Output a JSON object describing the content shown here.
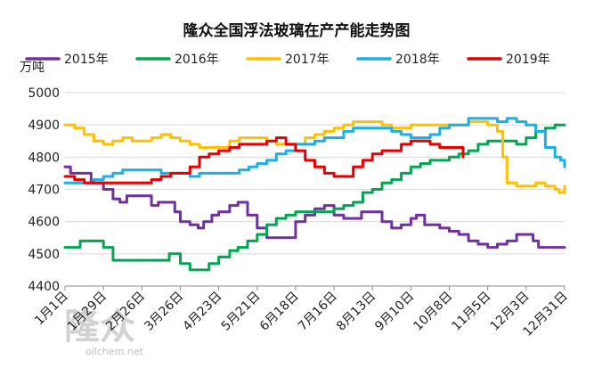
{
  "chart_data": {
    "type": "line",
    "title": "隆众全国浮法玻璃在产产能走势图",
    "ylabel": "万吨",
    "xlabel": "",
    "ylim": [
      4400,
      5000
    ],
    "yticks": [
      4400,
      4500,
      4600,
      4700,
      4800,
      4900,
      5000
    ],
    "xlim": [
      "1月1日",
      "12月31日"
    ],
    "xtick_labels": [
      "1月1日",
      "1月29日",
      "2月26日",
      "3月26日",
      "4月23日",
      "5月21日",
      "6月18日",
      "7月16日",
      "8月13日",
      "9月10日",
      "10月8日",
      "11月5日",
      "12月3日",
      "12月31日"
    ],
    "grid": "horizontal",
    "legend_position": "top",
    "series": [
      {
        "name": "2015年",
        "color": "#7030A0",
        "points": [
          [
            "1月1日",
            4770
          ],
          [
            "1月5日",
            4750
          ],
          [
            "1月12日",
            4750
          ],
          [
            "1月20日",
            4720
          ],
          [
            "1月29日",
            4700
          ],
          [
            "2月5日",
            4670
          ],
          [
            "2月10日",
            4660
          ],
          [
            "2月15日",
            4680
          ],
          [
            "2月26日",
            4680
          ],
          [
            "3月5日",
            4650
          ],
          [
            "3月10日",
            4660
          ],
          [
            "3月15日",
            4660
          ],
          [
            "3月22日",
            4630
          ],
          [
            "3月26日",
            4600
          ],
          [
            "4月2日",
            4590
          ],
          [
            "4月8日",
            4580
          ],
          [
            "4月12日",
            4600
          ],
          [
            "4月18日",
            4620
          ],
          [
            "4月23日",
            4630
          ],
          [
            "5月1日",
            4650
          ],
          [
            "5月7日",
            4660
          ],
          [
            "5月14日",
            4620
          ],
          [
            "5月21日",
            4580
          ],
          [
            "5月28日",
            4550
          ],
          [
            "6月4日",
            4550
          ],
          [
            "6月10日",
            4550
          ],
          [
            "6月18日",
            4600
          ],
          [
            "6月25日",
            4620
          ],
          [
            "7月2日",
            4640
          ],
          [
            "7月9日",
            4650
          ],
          [
            "7月16日",
            4620
          ],
          [
            "7月23日",
            4610
          ],
          [
            "7月30日",
            4610
          ],
          [
            "8月5日",
            4630
          ],
          [
            "8月13日",
            4630
          ],
          [
            "8月20日",
            4600
          ],
          [
            "8月27日",
            4580
          ],
          [
            "9月3日",
            4590
          ],
          [
            "9月10日",
            4610
          ],
          [
            "9月14日",
            4620
          ],
          [
            "9月20日",
            4590
          ],
          [
            "9月27日",
            4590
          ],
          [
            "10月1日",
            4580
          ],
          [
            "10月8日",
            4570
          ],
          [
            "10月15日",
            4560
          ],
          [
            "10月22日",
            4540
          ],
          [
            "10月29日",
            4530
          ],
          [
            "11月5日",
            4520
          ],
          [
            "11月12日",
            4530
          ],
          [
            "11月19日",
            4540
          ],
          [
            "11月26日",
            4560
          ],
          [
            "12月3日",
            4560
          ],
          [
            "12月8日",
            4540
          ],
          [
            "12月12日",
            4520
          ],
          [
            "12月20日",
            4520
          ],
          [
            "12月31日",
            4520
          ]
        ]
      },
      {
        "name": "2016年",
        "color": "#00A651",
        "points": [
          [
            "1月1日",
            4520
          ],
          [
            "1月8日",
            4520
          ],
          [
            "1月12日",
            4540
          ],
          [
            "1月20日",
            4540
          ],
          [
            "1月29日",
            4520
          ],
          [
            "2月5日",
            4480
          ],
          [
            "2月12日",
            4480
          ],
          [
            "2月20日",
            4480
          ],
          [
            "2月26日",
            4480
          ],
          [
            "3月5日",
            4480
          ],
          [
            "3月12日",
            4480
          ],
          [
            "3月18日",
            4500
          ],
          [
            "3月26日",
            4470
          ],
          [
            "4月2日",
            4450
          ],
          [
            "4月9日",
            4450
          ],
          [
            "4月16日",
            4470
          ],
          [
            "4月23日",
            4490
          ],
          [
            "5月1日",
            4510
          ],
          [
            "5月7日",
            4520
          ],
          [
            "5月14日",
            4540
          ],
          [
            "5月21日",
            4560
          ],
          [
            "5月28日",
            4590
          ],
          [
            "6月4日",
            4610
          ],
          [
            "6月11日",
            4620
          ],
          [
            "6月18日",
            4630
          ],
          [
            "6月25日",
            4630
          ],
          [
            "7月2日",
            4630
          ],
          [
            "7月9日",
            4630
          ],
          [
            "7月16日",
            4640
          ],
          [
            "7月23日",
            4650
          ],
          [
            "7月30日",
            4660
          ],
          [
            "8月6日",
            4690
          ],
          [
            "8月13日",
            4700
          ],
          [
            "8月20日",
            4720
          ],
          [
            "8月27日",
            4730
          ],
          [
            "9月3日",
            4750
          ],
          [
            "9月10日",
            4770
          ],
          [
            "9月17日",
            4780
          ],
          [
            "9月24日",
            4790
          ],
          [
            "10月1日",
            4790
          ],
          [
            "10月8日",
            4800
          ],
          [
            "10月15日",
            4810
          ],
          [
            "10月22日",
            4820
          ],
          [
            "10月29日",
            4840
          ],
          [
            "11月5日",
            4850
          ],
          [
            "11月12日",
            4850
          ],
          [
            "11月19日",
            4850
          ],
          [
            "11月26日",
            4840
          ],
          [
            "12月3日",
            4860
          ],
          [
            "12月10日",
            4880
          ],
          [
            "12月17日",
            4890
          ],
          [
            "12月24日",
            4900
          ],
          [
            "12月31日",
            4900
          ]
        ]
      },
      {
        "name": "2017年",
        "color": "#FFC000",
        "points": [
          [
            "1月1日",
            4900
          ],
          [
            "1月8日",
            4890
          ],
          [
            "1月15日",
            4870
          ],
          [
            "1月22日",
            4850
          ],
          [
            "1月29日",
            4840
          ],
          [
            "2月5日",
            4850
          ],
          [
            "2月12日",
            4860
          ],
          [
            "2月19日",
            4850
          ],
          [
            "2月26日",
            4850
          ],
          [
            "3月5日",
            4860
          ],
          [
            "3月12日",
            4870
          ],
          [
            "3月19日",
            4860
          ],
          [
            "3月26日",
            4850
          ],
          [
            "4月2日",
            4840
          ],
          [
            "4月9日",
            4830
          ],
          [
            "4月16日",
            4830
          ],
          [
            "4月23日",
            4830
          ],
          [
            "5月1日",
            4850
          ],
          [
            "5月8日",
            4860
          ],
          [
            "5月15日",
            4860
          ],
          [
            "5月21日",
            4860
          ],
          [
            "5月28日",
            4850
          ],
          [
            "6月4日",
            4840
          ],
          [
            "6月11日",
            4840
          ],
          [
            "6月18日",
            4840
          ],
          [
            "6月25日",
            4860
          ],
          [
            "7月2日",
            4870
          ],
          [
            "7月9日",
            4880
          ],
          [
            "7月16日",
            4890
          ],
          [
            "7月23日",
            4900
          ],
          [
            "7月30日",
            4910
          ],
          [
            "8月6日",
            4910
          ],
          [
            "8月13日",
            4910
          ],
          [
            "8月20日",
            4900
          ],
          [
            "8月27日",
            4890
          ],
          [
            "9月3日",
            4890
          ],
          [
            "9月10日",
            4900
          ],
          [
            "9月17日",
            4900
          ],
          [
            "9月24日",
            4900
          ],
          [
            "10月1日",
            4900
          ],
          [
            "10月8日",
            4900
          ],
          [
            "10月15日",
            4900
          ],
          [
            "10月22日",
            4910
          ],
          [
            "10月29日",
            4910
          ],
          [
            "11月5日",
            4900
          ],
          [
            "11月12日",
            4880
          ],
          [
            "11月16日",
            4800
          ],
          [
            "11月19日",
            4720
          ],
          [
            "11月26日",
            4710
          ],
          [
            "12月3日",
            4710
          ],
          [
            "12月10日",
            4720
          ],
          [
            "12月17日",
            4710
          ],
          [
            "12月24日",
            4700
          ],
          [
            "12月27日",
            4690
          ],
          [
            "12月31日",
            4710
          ]
        ]
      },
      {
        "name": "2018年",
        "color": "#1AAFE6",
        "points": [
          [
            "1月1日",
            4720
          ],
          [
            "1月8日",
            4720
          ],
          [
            "1月15日",
            4720
          ],
          [
            "1月22日",
            4730
          ],
          [
            "1月29日",
            4740
          ],
          [
            "2月5日",
            4750
          ],
          [
            "2月12日",
            4760
          ],
          [
            "2月19日",
            4760
          ],
          [
            "2月26日",
            4760
          ],
          [
            "3月5日",
            4760
          ],
          [
            "3月12日",
            4750
          ],
          [
            "3月19日",
            4750
          ],
          [
            "3月26日",
            4750
          ],
          [
            "4月2日",
            4740
          ],
          [
            "4月9日",
            4750
          ],
          [
            "4月16日",
            4750
          ],
          [
            "4月23日",
            4750
          ],
          [
            "5月1日",
            4750
          ],
          [
            "5月8日",
            4760
          ],
          [
            "5月15日",
            4770
          ],
          [
            "5月21日",
            4780
          ],
          [
            "5月28日",
            4790
          ],
          [
            "6月4日",
            4810
          ],
          [
            "6月11日",
            4820
          ],
          [
            "6月18日",
            4840
          ],
          [
            "6月25日",
            4840
          ],
          [
            "7月2日",
            4850
          ],
          [
            "7月9日",
            4860
          ],
          [
            "7月16日",
            4860
          ],
          [
            "7月23日",
            4880
          ],
          [
            "7月30日",
            4890
          ],
          [
            "8月6日",
            4890
          ],
          [
            "8月13日",
            4890
          ],
          [
            "8月20日",
            4890
          ],
          [
            "8月27日",
            4880
          ],
          [
            "9月3日",
            4870
          ],
          [
            "9月10日",
            4860
          ],
          [
            "9月17日",
            4860
          ],
          [
            "9月24日",
            4870
          ],
          [
            "10月1日",
            4890
          ],
          [
            "10月8日",
            4900
          ],
          [
            "10月15日",
            4900
          ],
          [
            "10月22日",
            4920
          ],
          [
            "10月29日",
            4920
          ],
          [
            "11月5日",
            4920
          ],
          [
            "11月12日",
            4910
          ],
          [
            "11月19日",
            4920
          ],
          [
            "11月26日",
            4910
          ],
          [
            "12月3日",
            4900
          ],
          [
            "12月10日",
            4880
          ],
          [
            "12月17日",
            4830
          ],
          [
            "12月24日",
            4800
          ],
          [
            "12月28日",
            4790
          ],
          [
            "12月31日",
            4770
          ]
        ]
      },
      {
        "name": "2019年",
        "color": "#E60000",
        "points": [
          [
            "1月1日",
            4740
          ],
          [
            "1月8日",
            4730
          ],
          [
            "1月15日",
            4720
          ],
          [
            "1月22日",
            4720
          ],
          [
            "1月29日",
            4720
          ],
          [
            "2月5日",
            4720
          ],
          [
            "2月12日",
            4720
          ],
          [
            "2月19日",
            4720
          ],
          [
            "2月26日",
            4720
          ],
          [
            "3月5日",
            4730
          ],
          [
            "3月12日",
            4740
          ],
          [
            "3月19日",
            4750
          ],
          [
            "3月26日",
            4750
          ],
          [
            "4月2日",
            4770
          ],
          [
            "4月9日",
            4800
          ],
          [
            "4月16日",
            4810
          ],
          [
            "4月23日",
            4820
          ],
          [
            "5月1日",
            4830
          ],
          [
            "5月8日",
            4840
          ],
          [
            "5月15日",
            4840
          ],
          [
            "5月21日",
            4840
          ],
          [
            "5月28日",
            4850
          ],
          [
            "6月4日",
            4860
          ],
          [
            "6月11日",
            4840
          ],
          [
            "6月18日",
            4820
          ],
          [
            "6月25日",
            4790
          ],
          [
            "7月2日",
            4770
          ],
          [
            "7月9日",
            4750
          ],
          [
            "7月16日",
            4740
          ],
          [
            "7月23日",
            4740
          ],
          [
            "7月30日",
            4770
          ],
          [
            "8月6日",
            4790
          ],
          [
            "8月13日",
            4810
          ],
          [
            "8月20日",
            4820
          ],
          [
            "8月27日",
            4820
          ],
          [
            "9月3日",
            4840
          ],
          [
            "9月10日",
            4850
          ],
          [
            "9月17日",
            4850
          ],
          [
            "9月24日",
            4840
          ],
          [
            "10月1日",
            4830
          ],
          [
            "10月8日",
            4830
          ],
          [
            "10月15日",
            4830
          ],
          [
            "10月18日",
            4800
          ]
        ]
      }
    ]
  },
  "watermark": {
    "text": "隆众",
    "sub": "oilchem.net"
  }
}
